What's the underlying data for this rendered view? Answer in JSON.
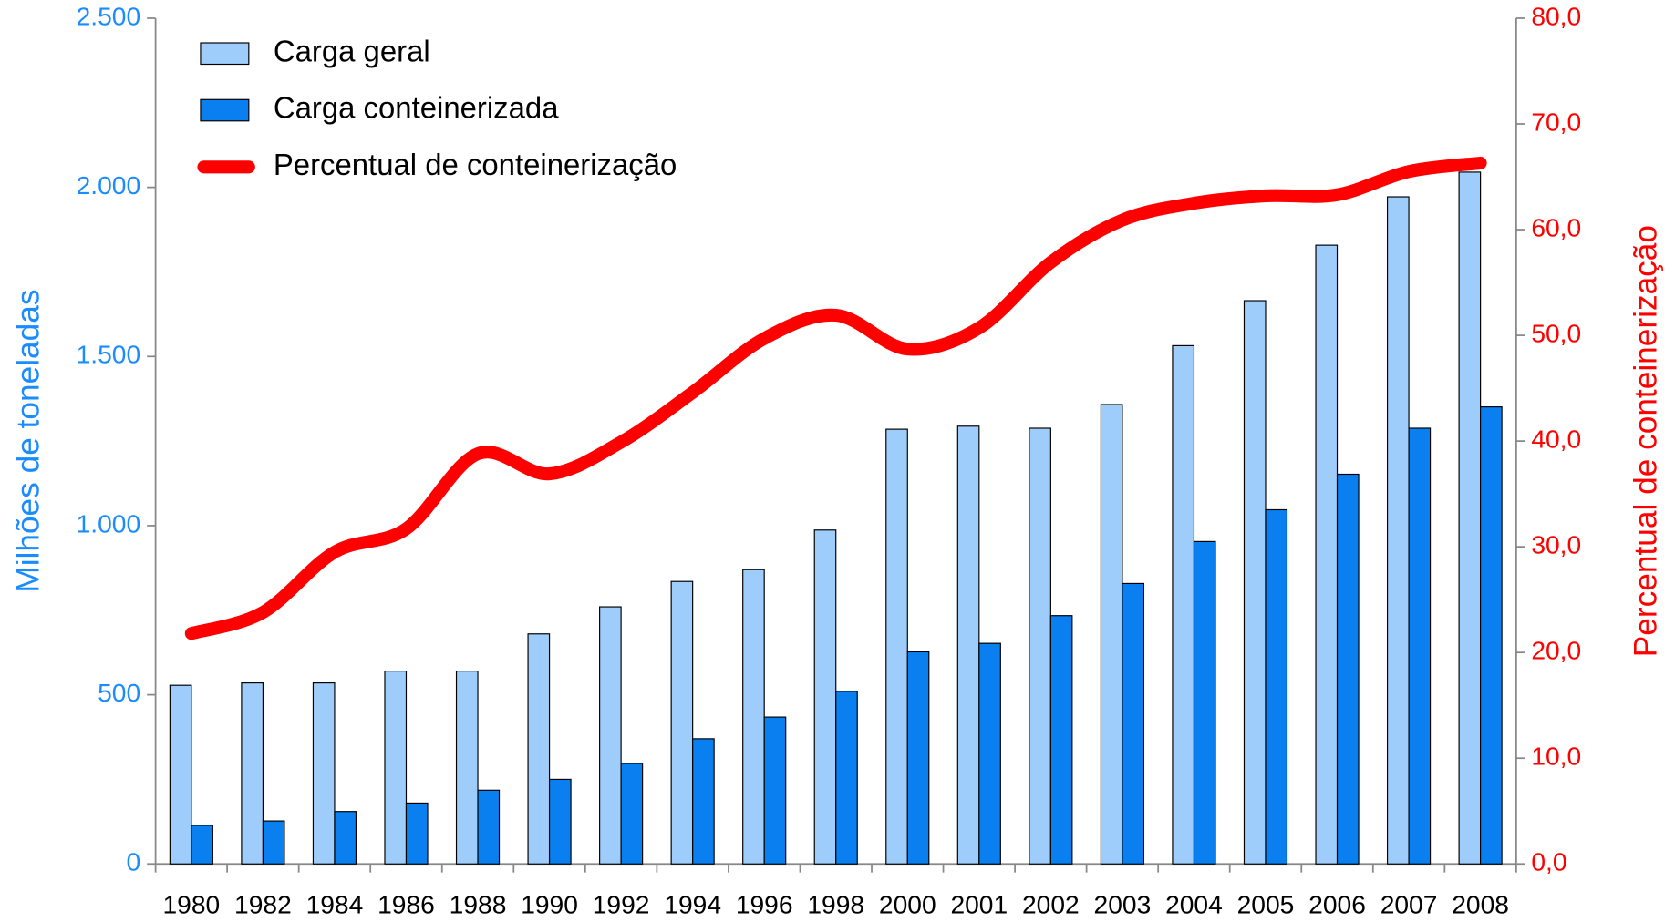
{
  "chart_data": {
    "type": "bar_line",
    "categories": [
      "1980",
      "1982",
      "1984",
      "1986",
      "1988",
      "1990",
      "1992",
      "1994",
      "1996",
      "1998",
      "2000",
      "2001",
      "2002",
      "2003",
      "2004",
      "2005",
      "2006",
      "2007",
      "2008"
    ],
    "series": [
      {
        "name": "Carga geral",
        "type": "bar",
        "color": "#9fcdfb",
        "values": [
          528,
          535,
          535,
          570,
          570,
          680,
          760,
          835,
          870,
          987,
          1285,
          1294,
          1288,
          1358,
          1532,
          1665,
          1829,
          1972,
          2045
        ]
      },
      {
        "name": "Carga conteinerizada",
        "type": "bar",
        "color": "#0a7ff0",
        "values": [
          114,
          127,
          155,
          180,
          218,
          250,
          297,
          370,
          434,
          510,
          627,
          652,
          734,
          829,
          953,
          1047,
          1152,
          1288,
          1351
        ]
      },
      {
        "name": "Percentual de conteinerização",
        "type": "line",
        "axis": "y2",
        "color": "#ff0000",
        "values": [
          21.8,
          23.8,
          29.5,
          31.7,
          38.8,
          36.9,
          39.9,
          44.6,
          49.7,
          51.9,
          48.7,
          50.7,
          56.9,
          60.9,
          62.5,
          63.2,
          63.3,
          65.5,
          66.3
        ]
      }
    ],
    "ylabel": "Milhões de toneladas",
    "y2label": "Percentual de conteinerização",
    "ylim": [
      0,
      2500
    ],
    "yticks": [
      0,
      500,
      {
        "value": 1000,
        "label": "1.000"
      },
      {
        "value": 1500,
        "label": "1.500"
      },
      {
        "value": 2000,
        "label": "2.000"
      },
      {
        "value": 2500,
        "label": "2.500"
      }
    ],
    "y2lim": [
      0,
      80
    ],
    "y2ticks": [
      {
        "value": 0,
        "label": "0,0"
      },
      {
        "value": 10,
        "label": "10,0"
      },
      {
        "value": 20,
        "label": "20,0"
      },
      {
        "value": 30,
        "label": "30,0"
      },
      {
        "value": 40,
        "label": "40,0"
      },
      {
        "value": 50,
        "label": "50,0"
      },
      {
        "value": 60,
        "label": "60,0"
      },
      {
        "value": 70,
        "label": "70,0"
      },
      {
        "value": 80,
        "label": "80,0"
      }
    ],
    "legend": "upper left",
    "grid": false
  }
}
